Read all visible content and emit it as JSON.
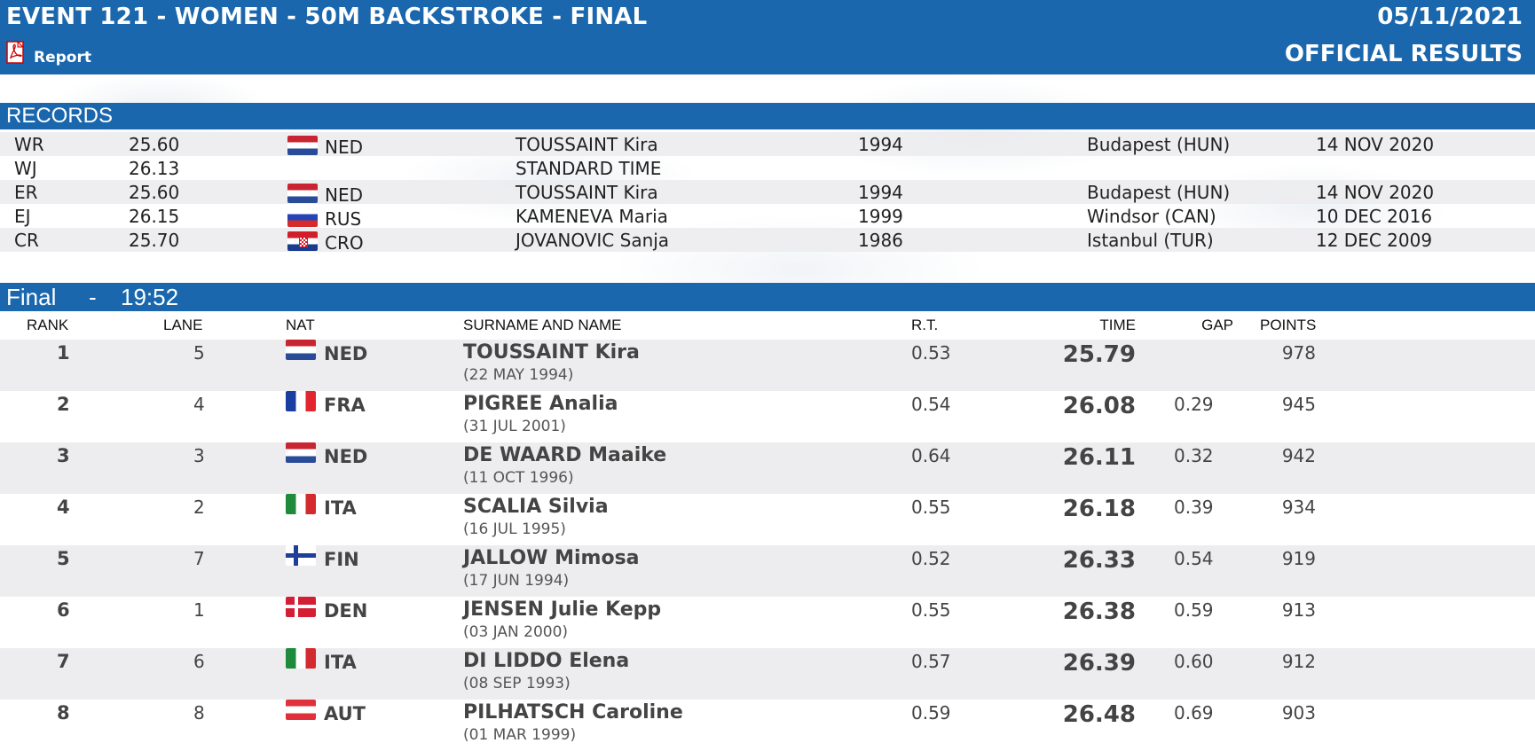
{
  "header": {
    "title": "EVENT 121 - WOMEN - 50M BACKSTROKE - FINAL",
    "date": "05/11/2021",
    "report_label": "Report",
    "status": "OFFICIAL RESULTS"
  },
  "records": {
    "label": "RECORDS",
    "rows": [
      {
        "code": "WR",
        "time": "25.60",
        "flag": "ned",
        "nat": "NED",
        "name": "TOUSSAINT Kira",
        "year": "1994",
        "place": "Budapest (HUN)",
        "date": "14 NOV 2020"
      },
      {
        "code": "WJ",
        "time": "26.13",
        "flag": "",
        "nat": "",
        "name": "STANDARD TIME",
        "year": "",
        "place": "",
        "date": ""
      },
      {
        "code": "ER",
        "time": "25.60",
        "flag": "ned",
        "nat": "NED",
        "name": "TOUSSAINT Kira",
        "year": "1994",
        "place": "Budapest (HUN)",
        "date": "14 NOV 2020"
      },
      {
        "code": "EJ",
        "time": "26.15",
        "flag": "rus",
        "nat": "RUS",
        "name": "KAMENEVA Maria",
        "year": "1999",
        "place": "Windsor (CAN)",
        "date": "10 DEC 2016"
      },
      {
        "code": "CR",
        "time": "25.70",
        "flag": "cro",
        "nat": "CRO",
        "name": "JOVANOVIC Sanja",
        "year": "1986",
        "place": "Istanbul (TUR)",
        "date": "12 DEC 2009"
      }
    ]
  },
  "final": {
    "label": "Final",
    "separator": "-",
    "start_time": "19:52",
    "columns": {
      "rank": "RANK",
      "lane": "LANE",
      "nat": "NAT",
      "name": "SURNAME AND NAME",
      "rt": "R.T.",
      "time": "TIME",
      "gap": "GAP",
      "points": "POINTS"
    },
    "results": [
      {
        "rank": "1",
        "lane": "5",
        "flag": "ned",
        "nat": "NED",
        "name": "TOUSSAINT Kira",
        "dob": "(22 MAY 1994)",
        "rt": "0.53",
        "time": "25.79",
        "gap": "",
        "points": "978"
      },
      {
        "rank": "2",
        "lane": "4",
        "flag": "fra",
        "nat": "FRA",
        "name": "PIGREE Analia",
        "dob": "(31 JUL 2001)",
        "rt": "0.54",
        "time": "26.08",
        "gap": "0.29",
        "points": "945"
      },
      {
        "rank": "3",
        "lane": "3",
        "flag": "ned",
        "nat": "NED",
        "name": "DE WAARD Maaike",
        "dob": "(11 OCT 1996)",
        "rt": "0.64",
        "time": "26.11",
        "gap": "0.32",
        "points": "942"
      },
      {
        "rank": "4",
        "lane": "2",
        "flag": "ita",
        "nat": "ITA",
        "name": "SCALIA Silvia",
        "dob": "(16 JUL 1995)",
        "rt": "0.55",
        "time": "26.18",
        "gap": "0.39",
        "points": "934"
      },
      {
        "rank": "5",
        "lane": "7",
        "flag": "fin",
        "nat": "FIN",
        "name": "JALLOW Mimosa",
        "dob": "(17 JUN 1994)",
        "rt": "0.52",
        "time": "26.33",
        "gap": "0.54",
        "points": "919"
      },
      {
        "rank": "6",
        "lane": "1",
        "flag": "den",
        "nat": "DEN",
        "name": "JENSEN Julie Kepp",
        "dob": "(03 JAN 2000)",
        "rt": "0.55",
        "time": "26.38",
        "gap": "0.59",
        "points": "913"
      },
      {
        "rank": "7",
        "lane": "6",
        "flag": "ita",
        "nat": "ITA",
        "name": "DI LIDDO Elena",
        "dob": "(08 SEP 1993)",
        "rt": "0.57",
        "time": "26.39",
        "gap": "0.60",
        "points": "912"
      },
      {
        "rank": "8",
        "lane": "8",
        "flag": "aut",
        "nat": "AUT",
        "name": "PILHATSCH Caroline",
        "dob": "(01 MAR 1999)",
        "rt": "0.59",
        "time": "26.48",
        "gap": "0.69",
        "points": "903"
      }
    ]
  }
}
